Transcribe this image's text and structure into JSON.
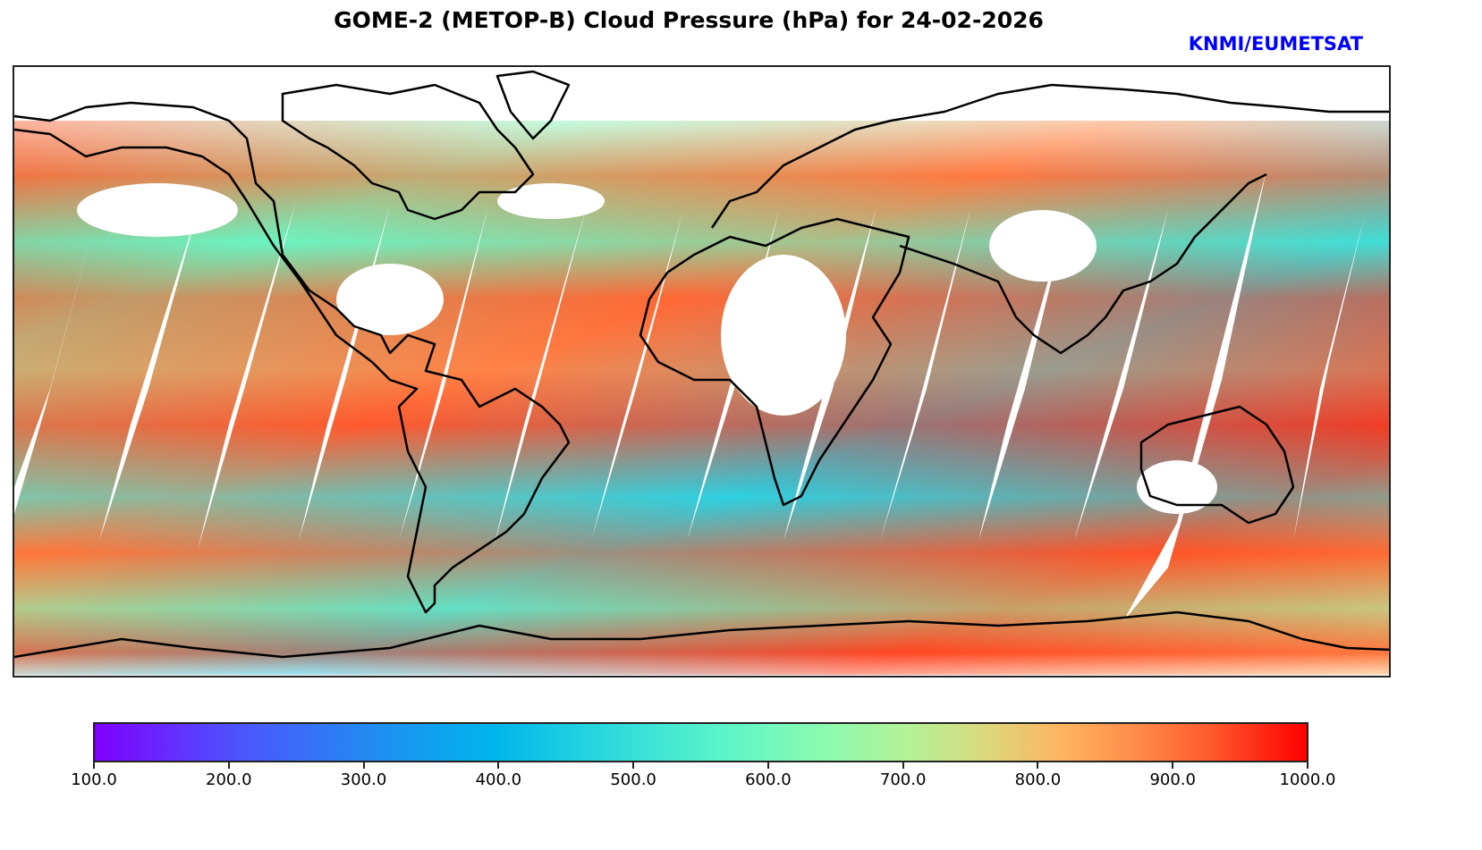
{
  "title": "GOME-2 (METOP-B) Cloud Pressure (hPa) for 24-02-2026",
  "credit": "KNMI/EUMETSAT",
  "map": {
    "variable": "Cloud Pressure",
    "units": "hPa",
    "projection": "plate-carree"
  },
  "colorbar": {
    "colormap": "rainbow",
    "min": 100.0,
    "max": 1000.0,
    "ticks": [
      "100.0",
      "200.0",
      "300.0",
      "400.0",
      "500.0",
      "600.0",
      "700.0",
      "800.0",
      "900.0",
      "1000.0"
    ],
    "colors": {
      "low": "#8000ff",
      "mid": "#80ffb4",
      "high": "#ff0000"
    }
  },
  "colors": {
    "title": "#000000",
    "credit": "#0000ff",
    "coastline": "#000000"
  }
}
